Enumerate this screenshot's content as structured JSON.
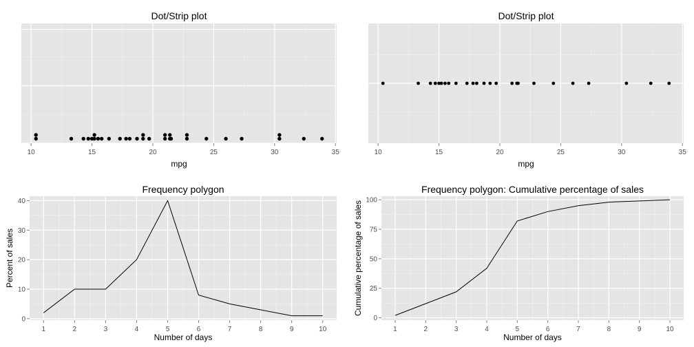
{
  "colors": {
    "panel_background": "#e5e5e5",
    "major_grid": "#ffffff",
    "minor_grid": "#f2f2f2",
    "tick_mark": "#7f7f7f",
    "tick_label": "#4d4d4d",
    "mark": "#000000"
  },
  "chart_data": [
    {
      "type": "scatter",
      "variant": "stacked dot plot",
      "title": "Dot/Strip plot",
      "xlabel": "mpg",
      "ylabel": "",
      "xlim": [
        9.2,
        35.1
      ],
      "xticks": [
        10,
        15,
        20,
        25,
        30,
        35
      ],
      "show_y_ticks": false,
      "grid": true,
      "values": [
        10.4,
        10.4,
        13.3,
        14.3,
        14.7,
        15.0,
        15.2,
        15.2,
        15.5,
        15.8,
        16.4,
        17.3,
        17.8,
        18.1,
        18.7,
        19.2,
        19.2,
        19.7,
        21.0,
        21.0,
        21.4,
        21.4,
        21.5,
        22.8,
        22.8,
        24.4,
        26.0,
        27.3,
        30.4,
        30.4,
        32.4,
        33.9
      ]
    },
    {
      "type": "scatter",
      "variant": "strip plot",
      "title": "Dot/Strip plot",
      "xlabel": "mpg",
      "ylabel": "",
      "xlim": [
        9.2,
        35.1
      ],
      "xticks": [
        10,
        15,
        20,
        25,
        30,
        35
      ],
      "show_y_ticks": false,
      "grid": true,
      "values": [
        10.4,
        13.3,
        14.3,
        14.7,
        15.0,
        15.2,
        15.5,
        15.8,
        16.4,
        17.3,
        17.8,
        18.1,
        18.7,
        19.2,
        19.7,
        21.0,
        21.4,
        21.5,
        22.8,
        24.4,
        26.0,
        27.3,
        30.4,
        32.4,
        33.9
      ]
    },
    {
      "type": "line",
      "title": "Frequency polygon",
      "xlabel": "Number of days",
      "ylabel": "Percent of sales",
      "xlim": [
        0.55,
        10.45
      ],
      "ylim": [
        -0.5,
        41.5
      ],
      "xticks": [
        1,
        2,
        3,
        4,
        5,
        6,
        7,
        8,
        9,
        10
      ],
      "yticks": [
        0,
        10,
        20,
        30,
        40
      ],
      "grid": true,
      "x": [
        1,
        2,
        3,
        4,
        5,
        6,
        7,
        8,
        9,
        10
      ],
      "y": [
        2,
        10,
        10,
        20,
        40,
        8,
        5,
        3,
        1,
        1
      ]
    },
    {
      "type": "line",
      "title": "Frequency polygon: Cumulative percentage of sales",
      "xlabel": "Number of days",
      "ylabel": "Cumulative percentage of sales",
      "xlim": [
        0.55,
        10.45
      ],
      "ylim": [
        -2,
        103
      ],
      "xticks": [
        1,
        2,
        3,
        4,
        5,
        6,
        7,
        8,
        9,
        10
      ],
      "yticks": [
        0,
        25,
        50,
        75,
        100
      ],
      "grid": true,
      "x": [
        1,
        2,
        3,
        4,
        5,
        6,
        7,
        8,
        9,
        10
      ],
      "y": [
        2,
        12,
        22,
        42,
        82,
        90,
        95,
        98,
        99,
        100
      ]
    }
  ]
}
